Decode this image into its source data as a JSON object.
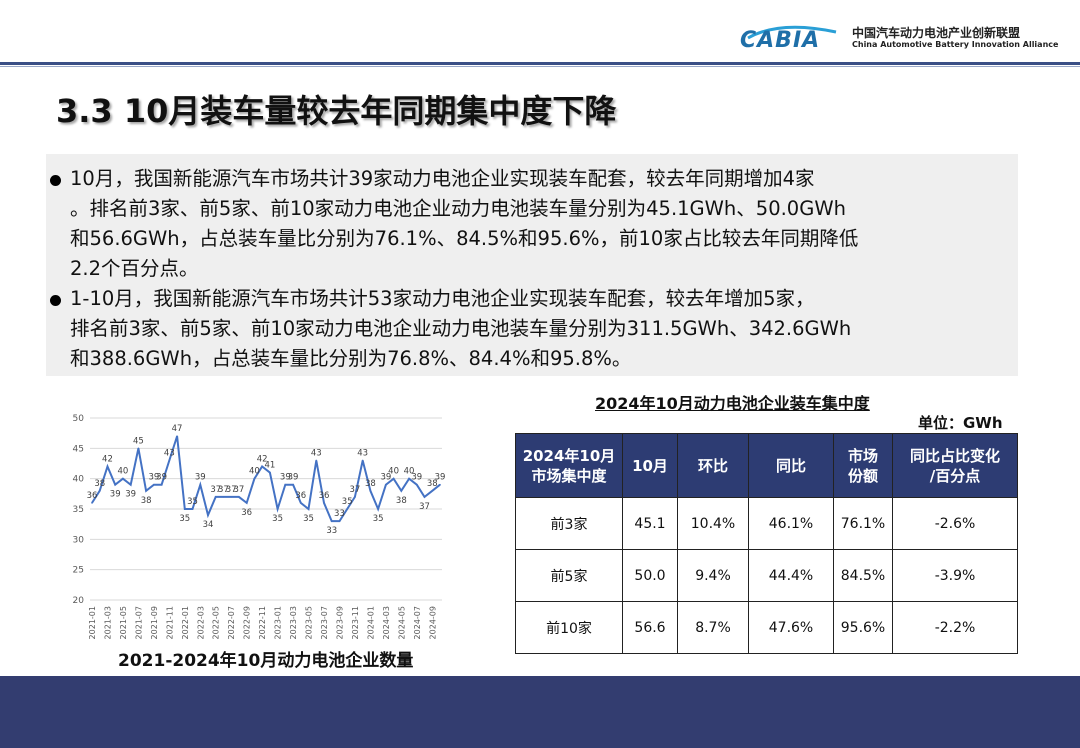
{
  "header": {
    "logo_text": "CABIA",
    "org_name_cn": "中国汽车动力电池产业创新联盟",
    "org_name_en": "China Automotive Battery Innovation Alliance"
  },
  "title": "3.3 10月装车量较去年同期集中度下降",
  "bullets": [
    {
      "lines": [
        "10月，我国新能源汽车市场共计39家动力电池企业实现装车配套，较去年同期增加4家",
        "。排名前3家、前5家、前10家动力电池企业动力电池装车量分别为45.1GWh、50.0GWh",
        "和56.6GWh，占总装车量比分别为76.1%、84.5%和95.6%，前10家占比较去年同期降低",
        "2.2个百分点。"
      ]
    },
    {
      "lines": [
        "1-10月，我国新能源汽车市场共计53家动力电池企业实现装车配套，较去年增加5家，",
        "排名前3家、前5家、前10家动力电池企业动力电池装车量分别为311.5GWh、342.6GWh",
        "和388.6GWh，占总装车量比分别为76.8%、84.4%和95.8%。"
      ]
    }
  ],
  "chart_caption": "2021-2024年10月动力电池企业数量",
  "chart_data": {
    "type": "line",
    "title": "2021-2024年10月动力电池企业数量",
    "xlabel": "",
    "ylabel": "",
    "ylim": [
      20,
      50
    ],
    "yticks": [
      20,
      25,
      30,
      35,
      40,
      45,
      50
    ],
    "grid": true,
    "line_color": "#4472c4",
    "x": [
      "2021-01",
      "2021-02",
      "2021-03",
      "2021-04",
      "2021-05",
      "2021-06",
      "2021-07",
      "2021-08",
      "2021-09",
      "2021-10",
      "2021-11",
      "2021-12",
      "2022-01",
      "2022-02",
      "2022-03",
      "2022-04",
      "2022-05",
      "2022-06",
      "2022-07",
      "2022-08",
      "2022-09",
      "2022-10",
      "2022-11",
      "2022-12",
      "2023-01",
      "2023-02",
      "2023-03",
      "2023-04",
      "2023-05",
      "2023-06",
      "2023-07",
      "2023-08",
      "2023-09",
      "2023-10",
      "2023-11",
      "2023-12",
      "2024-01",
      "2024-02",
      "2024-03",
      "2024-04",
      "2024-05",
      "2024-06",
      "2024-07",
      "2024-08",
      "2024-09",
      "2024-10"
    ],
    "xticks": [
      "2021-01",
      "2021-03",
      "2021-05",
      "2021-07",
      "2021-09",
      "2021-11",
      "2022-01",
      "2022-03",
      "2022-05",
      "2022-07",
      "2022-09",
      "2022-11",
      "2023-01",
      "2023-03",
      "2023-05",
      "2023-07",
      "2023-09",
      "2023-11",
      "2024-01",
      "2024-03",
      "2024-05",
      "2024-07",
      "2024-09"
    ],
    "values": [
      36,
      38,
      42,
      39,
      40,
      39,
      45,
      38,
      39,
      39,
      43,
      47,
      35,
      35,
      39,
      34,
      37,
      37,
      37,
      37,
      36,
      40,
      42,
      41,
      35,
      39,
      39,
      36,
      35,
      43,
      36,
      33,
      33,
      35,
      37,
      43,
      38,
      35,
      39,
      40,
      38,
      40,
      39,
      37,
      38,
      39
    ]
  },
  "table": {
    "title": "2024年10月动力电池企业装车集中度",
    "unit": "单位：GWh",
    "headers": [
      "2024年10月\n市场集中度",
      "10月",
      "环比",
      "同比",
      "市场\n份额",
      "同比占比变化\n/百分点"
    ],
    "rows": [
      [
        "前3家",
        "45.1",
        "10.4%",
        "46.1%",
        "76.1%",
        "-2.6%"
      ],
      [
        "前5家",
        "50.0",
        "9.4%",
        "44.4%",
        "84.5%",
        "-3.9%"
      ],
      [
        "前10家",
        "56.6",
        "8.7%",
        "47.6%",
        "95.6%",
        "-2.2%"
      ]
    ]
  },
  "colors": {
    "header_bg": "#2d3c73",
    "footer_bg": "#333d70",
    "accent_line": "#3a4f86",
    "logo_blue": "#1f6fa8"
  }
}
